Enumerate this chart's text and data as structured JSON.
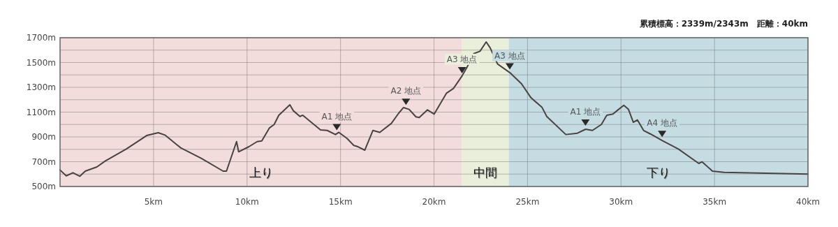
{
  "chart_data": {
    "type": "line",
    "title": "累積標高：2339m/2343m　距離：40km",
    "x": [
      0,
      0.33,
      0.69,
      1.06,
      1.35,
      1.97,
      2.41,
      3.54,
      4.63,
      5.25,
      5.61,
      6.45,
      7.55,
      8.72,
      8.9,
      9.44,
      9.55,
      10.1,
      10.54,
      10.79,
      11.19,
      11.45,
      11.7,
      12.29,
      12.47,
      12.83,
      12.98,
      13.93,
      14.29,
      14.73,
      14.91,
      15.35,
      15.71,
      15.93,
      16.3,
      16.73,
      17.1,
      17.72,
      18.12,
      18.37,
      18.67,
      19.03,
      19.21,
      19.65,
      20.01,
      20.67,
      21.04,
      21.47,
      21.76,
      22.13,
      22.46,
      22.79,
      23.0,
      23.4,
      24.1,
      24.68,
      25.19,
      25.77,
      26.03,
      27.05,
      27.67,
      28.11,
      28.47,
      28.95,
      29.24,
      29.57,
      29.79,
      30.15,
      30.4,
      30.66,
      30.88,
      31.21,
      31.57,
      32.23,
      33.07,
      34.16,
      34.34,
      34.89,
      35.51,
      40
    ],
    "series": [
      {
        "color": "#4a4242",
        "values": [
          633,
          586,
          611,
          583,
          624,
          658,
          705,
          802,
          911,
          934,
          915,
          812,
          727,
          624,
          624,
          862,
          780,
          821,
          862,
          868,
          971,
          1000,
          1075,
          1159,
          1112,
          1065,
          1075,
          956,
          952,
          919,
          937,
          887,
          831,
          821,
          793,
          952,
          937,
          1009,
          1093,
          1137,
          1122,
          1062,
          1056,
          1118,
          1084,
          1253,
          1291,
          1385,
          1460,
          1572,
          1591,
          1666,
          1619,
          1488,
          1413,
          1328,
          1215,
          1140,
          1065,
          919,
          930,
          962,
          952,
          1000,
          1075,
          1084,
          1112,
          1155,
          1122,
          1018,
          1037,
          952,
          924,
          868,
          802,
          686,
          699,
          624,
          614,
          600
        ]
      }
    ],
    "xlim": [
      0,
      40
    ],
    "xticks": [
      {
        "value": 5,
        "label": "5km"
      },
      {
        "value": 10,
        "label": "10km"
      },
      {
        "value": 15,
        "label": "15km"
      },
      {
        "value": 20,
        "label": "20km"
      },
      {
        "value": 25,
        "label": "25km"
      },
      {
        "value": 30,
        "label": "30km"
      },
      {
        "value": 35,
        "label": "35km"
      },
      {
        "value": 40,
        "label": "40km"
      }
    ],
    "ylim": [
      500,
      1700
    ],
    "yticks": [
      {
        "value": 500,
        "label": "500m"
      },
      {
        "value": 600,
        "label": null
      },
      {
        "value": 700,
        "label": "700m"
      },
      {
        "value": 800,
        "label": null
      },
      {
        "value": 900,
        "label": "900m"
      },
      {
        "value": 1000,
        "label": null
      },
      {
        "value": 1100,
        "label": "1100m"
      },
      {
        "value": 1200,
        "label": null
      },
      {
        "value": 1300,
        "label": "1300m"
      },
      {
        "value": 1400,
        "label": null
      },
      {
        "value": 1500,
        "label": "1500m"
      },
      {
        "value": 1600,
        "label": null
      },
      {
        "value": 1700,
        "label": "1700m"
      }
    ],
    "grid": true,
    "bands": [
      {
        "axis": "x",
        "from": 0,
        "to": 21.5,
        "label": "上り",
        "color": "#f2dcdc"
      },
      {
        "axis": "x",
        "from": 21.5,
        "to": 24.0,
        "label": "中間",
        "color": "#e9efdb"
      },
      {
        "axis": "x",
        "from": 24.0,
        "to": 40,
        "label": "下り",
        "color": "#c4dce2"
      }
    ],
    "annotations": [
      {
        "text": "A1 地点",
        "x": 14.8,
        "y": 925
      },
      {
        "text": "A2 地点",
        "x": 18.5,
        "y": 1130
      },
      {
        "text": "A3 地点",
        "x": 21.5,
        "y": 1385
      },
      {
        "text": "A3 地点",
        "x": 24.05,
        "y": 1415
      },
      {
        "text": "A1 地点",
        "x": 28.1,
        "y": 962
      },
      {
        "text": "A4 地点",
        "x": 32.2,
        "y": 870
      }
    ]
  }
}
